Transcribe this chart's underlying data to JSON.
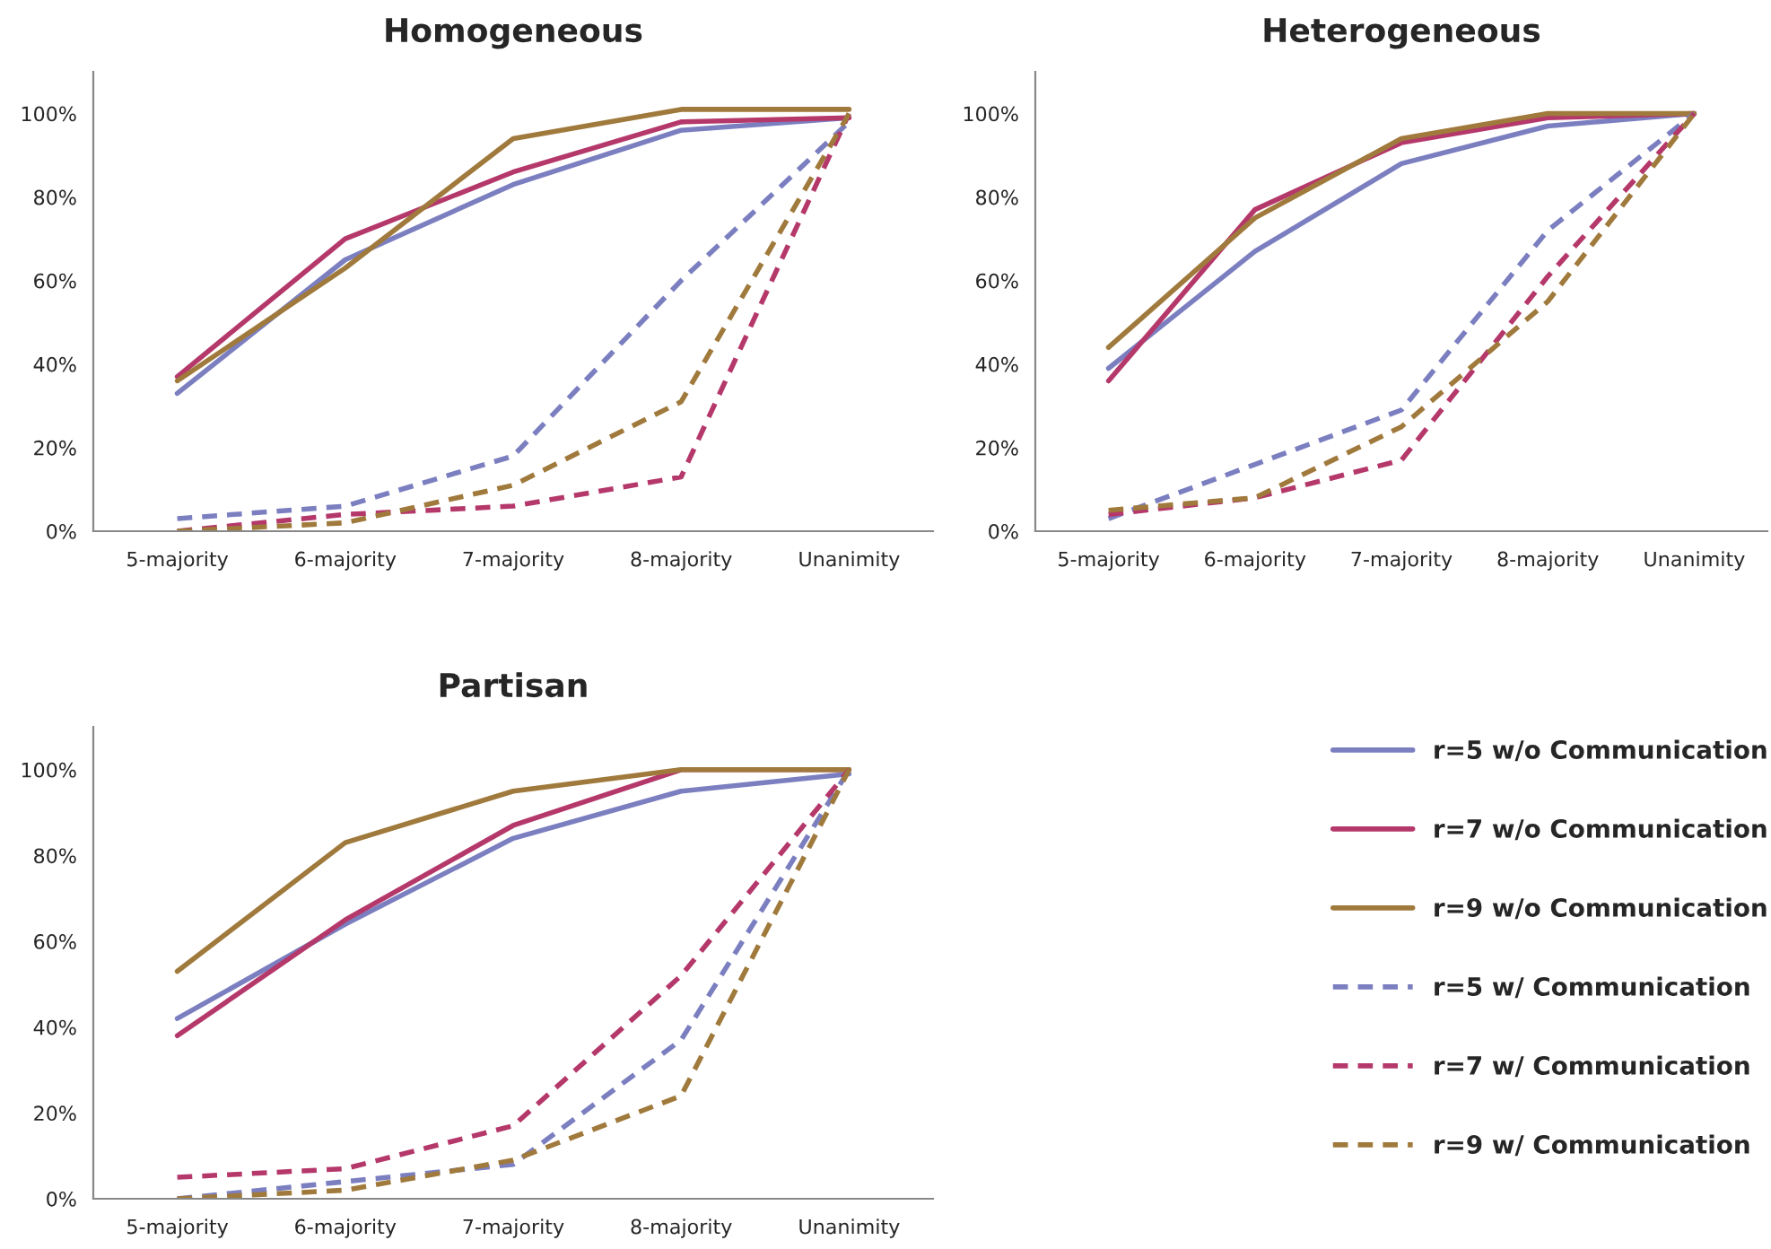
{
  "chart_data": [
    {
      "type": "line",
      "title": "Homogeneous",
      "categories": [
        "5-majority",
        "6-majority",
        "7-majority",
        "8-majority",
        "Unanimity"
      ],
      "ylim": [
        0,
        110
      ],
      "yticks": [
        {
          "value": 0,
          "label": "0%"
        },
        {
          "value": 20,
          "label": "20%"
        },
        {
          "value": 40,
          "label": "40%"
        },
        {
          "value": 60,
          "label": "60%"
        },
        {
          "value": 80,
          "label": "80%"
        },
        {
          "value": 100,
          "label": "100%"
        }
      ],
      "grid": false,
      "legend": false,
      "marker": "none",
      "series": [
        {
          "color": "#7b7fc0",
          "line_style": "solid",
          "values": [
            33,
            65,
            83,
            96,
            99
          ]
        },
        {
          "color": "#b5386b",
          "line_style": "solid",
          "values": [
            37,
            70,
            86,
            98,
            99
          ]
        },
        {
          "color": "#a07a3c",
          "line_style": "solid",
          "values": [
            36,
            63,
            94,
            101,
            101
          ]
        },
        {
          "color": "#7b7fc0",
          "line_style": "dashed",
          "values": [
            3,
            6,
            18,
            60,
            98
          ]
        },
        {
          "color": "#b5386b",
          "line_style": "dashed",
          "values": [
            0,
            4,
            6,
            13,
            100
          ]
        },
        {
          "color": "#a07a3c",
          "line_style": "dashed",
          "values": [
            0,
            2,
            11,
            31,
            100
          ]
        }
      ]
    },
    {
      "type": "line",
      "title": "Heterogeneous",
      "categories": [
        "5-majority",
        "6-majority",
        "7-majority",
        "8-majority",
        "Unanimity"
      ],
      "ylim": [
        0,
        110
      ],
      "yticks": [
        {
          "value": 0,
          "label": "0%"
        },
        {
          "value": 20,
          "label": "20%"
        },
        {
          "value": 40,
          "label": "40%"
        },
        {
          "value": 60,
          "label": "60%"
        },
        {
          "value": 80,
          "label": "80%"
        },
        {
          "value": 100,
          "label": "100%"
        }
      ],
      "grid": false,
      "legend": false,
      "marker": "none",
      "series": [
        {
          "color": "#7b7fc0",
          "line_style": "solid",
          "values": [
            39,
            67,
            88,
            97,
            100
          ]
        },
        {
          "color": "#b5386b",
          "line_style": "solid",
          "values": [
            36,
            77,
            93,
            99,
            100
          ]
        },
        {
          "color": "#a07a3c",
          "line_style": "solid",
          "values": [
            44,
            75,
            94,
            100,
            100
          ]
        },
        {
          "color": "#7b7fc0",
          "line_style": "dashed",
          "values": [
            3,
            16,
            29,
            72,
            100
          ]
        },
        {
          "color": "#b5386b",
          "line_style": "dashed",
          "values": [
            4,
            8,
            17,
            61,
            100
          ]
        },
        {
          "color": "#a07a3c",
          "line_style": "dashed",
          "values": [
            5,
            8,
            25,
            55,
            100
          ]
        }
      ]
    },
    {
      "type": "line",
      "title": "Partisan",
      "categories": [
        "5-majority",
        "6-majority",
        "7-majority",
        "8-majority",
        "Unanimity"
      ],
      "ylim": [
        0,
        110
      ],
      "yticks": [
        {
          "value": 0,
          "label": "0%"
        },
        {
          "value": 20,
          "label": "20%"
        },
        {
          "value": 40,
          "label": "40%"
        },
        {
          "value": 60,
          "label": "60%"
        },
        {
          "value": 80,
          "label": "80%"
        },
        {
          "value": 100,
          "label": "100%"
        }
      ],
      "grid": false,
      "legend": "right",
      "marker": "none",
      "series": [
        {
          "name": "r=5 w/o Communication",
          "color": "#7b7fc0",
          "line_style": "solid",
          "values": [
            42,
            64,
            84,
            95,
            99
          ]
        },
        {
          "name": "r=7 w/o Communication",
          "color": "#b5386b",
          "line_style": "solid",
          "values": [
            38,
            65,
            87,
            100,
            100
          ]
        },
        {
          "name": "r=9 w/o Communication",
          "color": "#a07a3c",
          "line_style": "solid",
          "values": [
            53,
            83,
            95,
            100,
            100
          ]
        },
        {
          "name": "r=5 w/ Communication",
          "color": "#7b7fc0",
          "line_style": "dashed",
          "values": [
            0,
            4,
            8,
            37,
            100
          ]
        },
        {
          "name": "r=7 w/ Communication",
          "color": "#b5386b",
          "line_style": "dashed",
          "values": [
            5,
            7,
            17,
            52,
            100
          ]
        },
        {
          "name": "r=9 w/ Communication",
          "color": "#a07a3c",
          "line_style": "dashed",
          "values": [
            0,
            2,
            9,
            24,
            100
          ]
        }
      ]
    }
  ]
}
